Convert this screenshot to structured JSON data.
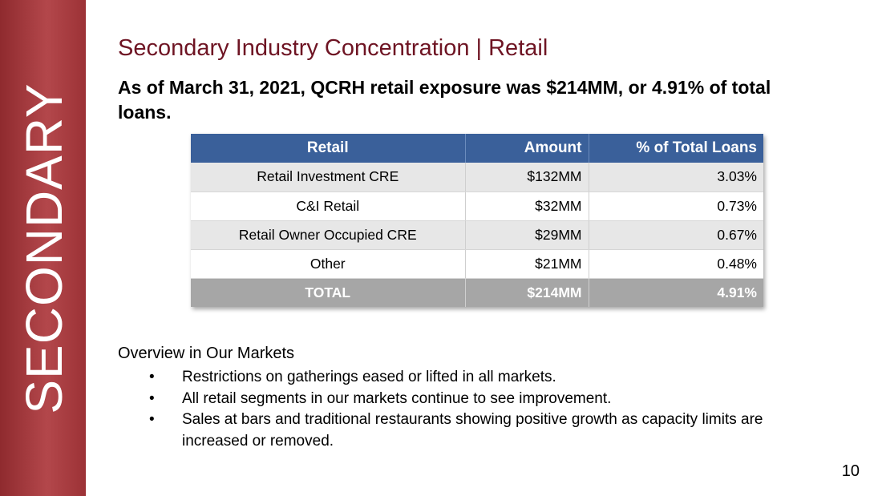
{
  "sidebar": {
    "label": "SECONDARY"
  },
  "title": "Secondary Industry Concentration | Retail",
  "headline": "As of March 31, 2021, QCRH retail exposure was $214MM, or 4.91% of total loans.",
  "table": {
    "headers": [
      "Retail",
      "Amount",
      "% of Total Loans"
    ],
    "rows": [
      [
        "Retail Investment CRE",
        "$132MM",
        "3.03%"
      ],
      [
        "C&I Retail",
        "$32MM",
        "0.73%"
      ],
      [
        "Retail Owner Occupied CRE",
        "$29MM",
        "0.67%"
      ],
      [
        "Other",
        "$21MM",
        "0.48%"
      ]
    ],
    "total": [
      "TOTAL",
      "$214MM",
      "4.91%"
    ]
  },
  "overview": {
    "title": "Overview in Our Markets",
    "bullet_symbol": "•",
    "bullets": [
      "Restrictions on gatherings eased or lifted in all markets.",
      "All retail segments in our markets continue to see improvement.",
      "Sales at bars and traditional restaurants showing positive growth as capacity limits are increased or removed."
    ]
  },
  "page_number": "10",
  "colors": {
    "sidebar": "#a53c40",
    "title": "#6e1423",
    "table_header": "#3a609a",
    "table_total": "#a6a6a6",
    "row_shade": "#e7e7e7"
  }
}
